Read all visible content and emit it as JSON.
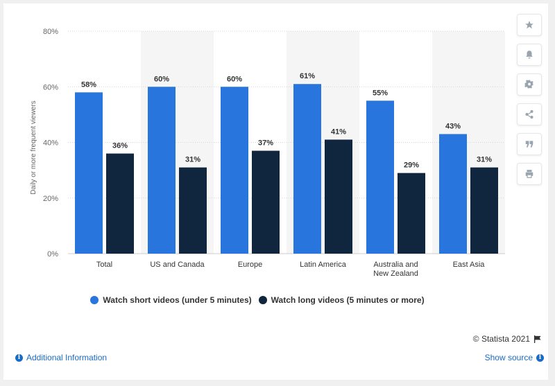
{
  "chart_data": {
    "type": "bar",
    "title": "",
    "xlabel": "",
    "ylabel": "Daily or more frequent viewers",
    "ylim": [
      0,
      80
    ],
    "yticks": [
      "0%",
      "20%",
      "40%",
      "60%",
      "80%"
    ],
    "categories": [
      "Total",
      "US and Canada",
      "Europe",
      "Latin America",
      "Australia and New Zealand",
      "East Asia"
    ],
    "series": [
      {
        "name": "Watch short videos (under 5 minutes)",
        "color": "#2876dd",
        "values": [
          58,
          60,
          60,
          61,
          55,
          43
        ],
        "labels": [
          "58%",
          "60%",
          "60%",
          "61%",
          "55%",
          "43%"
        ]
      },
      {
        "name": "Watch long videos (5 minutes or more)",
        "color": "#10253e",
        "values": [
          36,
          31,
          37,
          41,
          29,
          31
        ],
        "labels": [
          "36%",
          "31%",
          "37%",
          "41%",
          "29%",
          "31%"
        ]
      }
    ],
    "grid": true,
    "legend": "bottom"
  },
  "copyright": "© Statista 2021",
  "footer": {
    "additional_info": "Additional Information",
    "show_source": "Show source"
  },
  "tools": [
    "star-icon",
    "bell-icon",
    "gear-icon",
    "share-icon",
    "quote-icon",
    "print-icon"
  ],
  "colors": {
    "band": "#f5f5f5",
    "link": "#1a6bc4"
  }
}
